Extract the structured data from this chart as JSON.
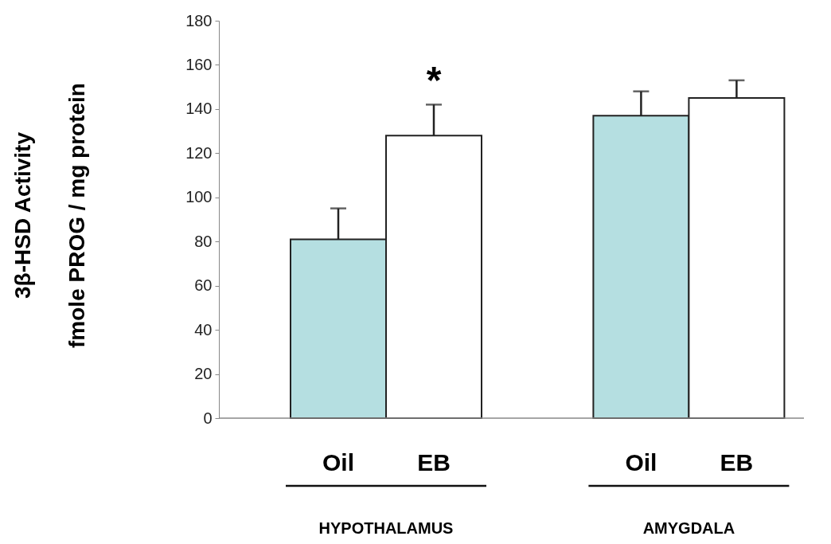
{
  "chart_data": {
    "type": "bar",
    "ylabel": "3β-HSD Activity\nfmole  PROG / mg protein",
    "categories": [
      "Oil",
      "EB",
      "Oil",
      "EB"
    ],
    "values": [
      81,
      128,
      137,
      145
    ],
    "colors": [
      "#b5dfe1",
      "#ffffff",
      "#b5dfe1",
      "#ffffff"
    ],
    "errors": [
      [
        81,
        95
      ],
      [
        128,
        142
      ],
      [
        137,
        148
      ],
      [
        145,
        153
      ]
    ],
    "ylim": [
      0,
      180
    ],
    "yticks": [
      0,
      20,
      40,
      60,
      80,
      100,
      120,
      140,
      160,
      180
    ],
    "grid": false,
    "annotations": [
      {
        "text": "*",
        "x": "EB",
        "y": 142
      },
      "HYPOTHALAMUS",
      "AMYGDALA"
    ]
  }
}
